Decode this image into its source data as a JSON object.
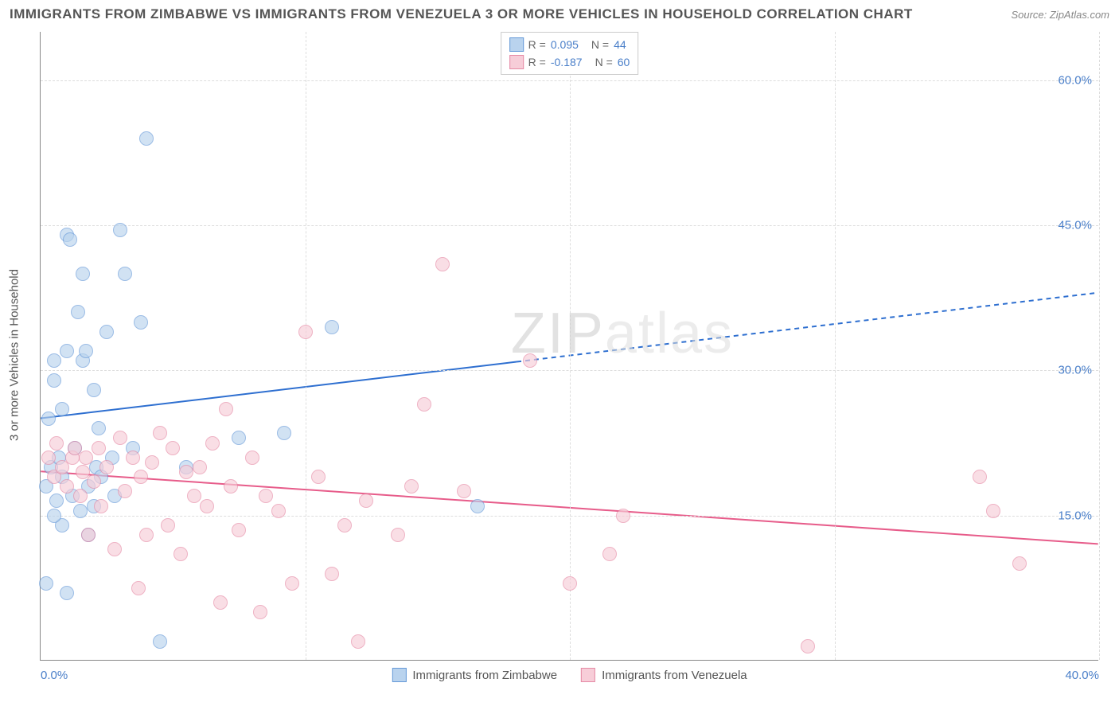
{
  "title": "IMMIGRANTS FROM ZIMBABWE VS IMMIGRANTS FROM VENEZUELA 3 OR MORE VEHICLES IN HOUSEHOLD CORRELATION CHART",
  "source": "Source: ZipAtlas.com",
  "ylabel": "3 or more Vehicles in Household",
  "watermark": "ZIPatlas",
  "chart": {
    "type": "scatter",
    "background_color": "#ffffff",
    "grid_color": "#dddddd",
    "axis_color": "#888888",
    "label_color": "#4a7fc9",
    "xlim": [
      0,
      40
    ],
    "ylim": [
      0,
      65
    ],
    "xticks": [
      0,
      10,
      20,
      30,
      40
    ],
    "xtick_labels": [
      "0.0%",
      "",
      "",
      "",
      "40.0%"
    ],
    "yticks": [
      15,
      30,
      45,
      60
    ],
    "ytick_labels": [
      "15.0%",
      "30.0%",
      "45.0%",
      "60.0%"
    ],
    "marker_radius": 9,
    "marker_stroke_width": 1.5,
    "series": [
      {
        "name": "Immigrants from Zimbabwe",
        "fill": "#b9d3ee",
        "stroke": "#6699d8",
        "fill_opacity": 0.65,
        "R": "0.095",
        "N": "44",
        "trend": {
          "x1": 0,
          "y1": 25,
          "x2": 40,
          "y2": 38,
          "solid_until_x": 18,
          "color": "#2e6fd0",
          "width": 2
        },
        "points": [
          [
            0.2,
            18
          ],
          [
            0.3,
            25
          ],
          [
            0.4,
            20
          ],
          [
            0.5,
            29
          ],
          [
            0.5,
            31
          ],
          [
            0.6,
            16.5
          ],
          [
            0.7,
            21
          ],
          [
            0.8,
            26
          ],
          [
            0.8,
            19
          ],
          [
            1.0,
            44
          ],
          [
            1.1,
            43.5
          ],
          [
            1.2,
            17
          ],
          [
            1.3,
            22
          ],
          [
            1.4,
            36
          ],
          [
            1.5,
            15.5
          ],
          [
            1.6,
            40
          ],
          [
            1.6,
            31
          ],
          [
            1.7,
            32
          ],
          [
            1.8,
            18
          ],
          [
            2.0,
            28
          ],
          [
            2.1,
            20
          ],
          [
            2.2,
            24
          ],
          [
            2.3,
            19
          ],
          [
            2.5,
            34
          ],
          [
            2.7,
            21
          ],
          [
            2.8,
            17
          ],
          [
            3.0,
            44.5
          ],
          [
            3.2,
            40
          ],
          [
            3.5,
            22
          ],
          [
            3.8,
            35
          ],
          [
            4.0,
            54
          ],
          [
            4.5,
            2
          ],
          [
            1.0,
            7
          ],
          [
            0.2,
            8
          ],
          [
            0.8,
            14
          ],
          [
            1.8,
            13
          ],
          [
            2.0,
            16
          ],
          [
            1.0,
            32
          ],
          [
            0.5,
            15
          ],
          [
            5.5,
            20
          ],
          [
            7.5,
            23
          ],
          [
            11.0,
            34.5
          ],
          [
            9.2,
            23.5
          ],
          [
            16.5,
            16
          ]
        ]
      },
      {
        "name": "Immigrants from Venezuela",
        "fill": "#f7cdd8",
        "stroke": "#e68aa5",
        "fill_opacity": 0.65,
        "R": "-0.187",
        "N": "60",
        "trend": {
          "x1": 0,
          "y1": 19.5,
          "x2": 40,
          "y2": 12,
          "solid_until_x": 40,
          "color": "#e75c8a",
          "width": 2
        },
        "points": [
          [
            0.3,
            21
          ],
          [
            0.5,
            19
          ],
          [
            0.6,
            22.5
          ],
          [
            0.8,
            20
          ],
          [
            1.0,
            18
          ],
          [
            1.2,
            21
          ],
          [
            1.3,
            22
          ],
          [
            1.5,
            17
          ],
          [
            1.6,
            19.5
          ],
          [
            1.7,
            21
          ],
          [
            1.8,
            13
          ],
          [
            2.0,
            18.5
          ],
          [
            2.2,
            22
          ],
          [
            2.3,
            16
          ],
          [
            2.5,
            20
          ],
          [
            2.8,
            11.5
          ],
          [
            3.0,
            23
          ],
          [
            3.2,
            17.5
          ],
          [
            3.5,
            21
          ],
          [
            3.8,
            19
          ],
          [
            4.0,
            13
          ],
          [
            4.2,
            20.5
          ],
          [
            4.5,
            23.5
          ],
          [
            4.8,
            14
          ],
          [
            5.0,
            22
          ],
          [
            5.3,
            11
          ],
          [
            5.5,
            19.5
          ],
          [
            5.8,
            17
          ],
          [
            6.0,
            20
          ],
          [
            6.3,
            16
          ],
          [
            6.5,
            22.5
          ],
          [
            6.8,
            6
          ],
          [
            7.0,
            26
          ],
          [
            7.2,
            18
          ],
          [
            7.5,
            13.5
          ],
          [
            8.0,
            21
          ],
          [
            8.3,
            5
          ],
          [
            8.5,
            17
          ],
          [
            9.0,
            15.5
          ],
          [
            9.5,
            8
          ],
          [
            10.0,
            34
          ],
          [
            10.5,
            19
          ],
          [
            11.0,
            9
          ],
          [
            11.5,
            14
          ],
          [
            12.0,
            2
          ],
          [
            12.3,
            16.5
          ],
          [
            13.5,
            13
          ],
          [
            14.0,
            18
          ],
          [
            14.5,
            26.5
          ],
          [
            15.2,
            41
          ],
          [
            16.0,
            17.5
          ],
          [
            18.5,
            31
          ],
          [
            20.0,
            8
          ],
          [
            21.5,
            11
          ],
          [
            22.0,
            15
          ],
          [
            29.0,
            1.5
          ],
          [
            35.5,
            19
          ],
          [
            36.0,
            15.5
          ],
          [
            37.0,
            10
          ],
          [
            3.7,
            7.5
          ]
        ]
      }
    ]
  },
  "legend_top": [
    {
      "swatch_fill": "#b9d3ee",
      "swatch_stroke": "#6699d8",
      "r_label": "R =",
      "r_val": "0.095",
      "n_label": "N =",
      "n_val": "44"
    },
    {
      "swatch_fill": "#f7cdd8",
      "swatch_stroke": "#e68aa5",
      "r_label": "R =",
      "r_val": "-0.187",
      "n_label": "N =",
      "n_val": "60"
    }
  ],
  "legend_bottom": [
    {
      "swatch_fill": "#b9d3ee",
      "swatch_stroke": "#6699d8",
      "label": "Immigrants from Zimbabwe"
    },
    {
      "swatch_fill": "#f7cdd8",
      "swatch_stroke": "#e68aa5",
      "label": "Immigrants from Venezuela"
    }
  ]
}
